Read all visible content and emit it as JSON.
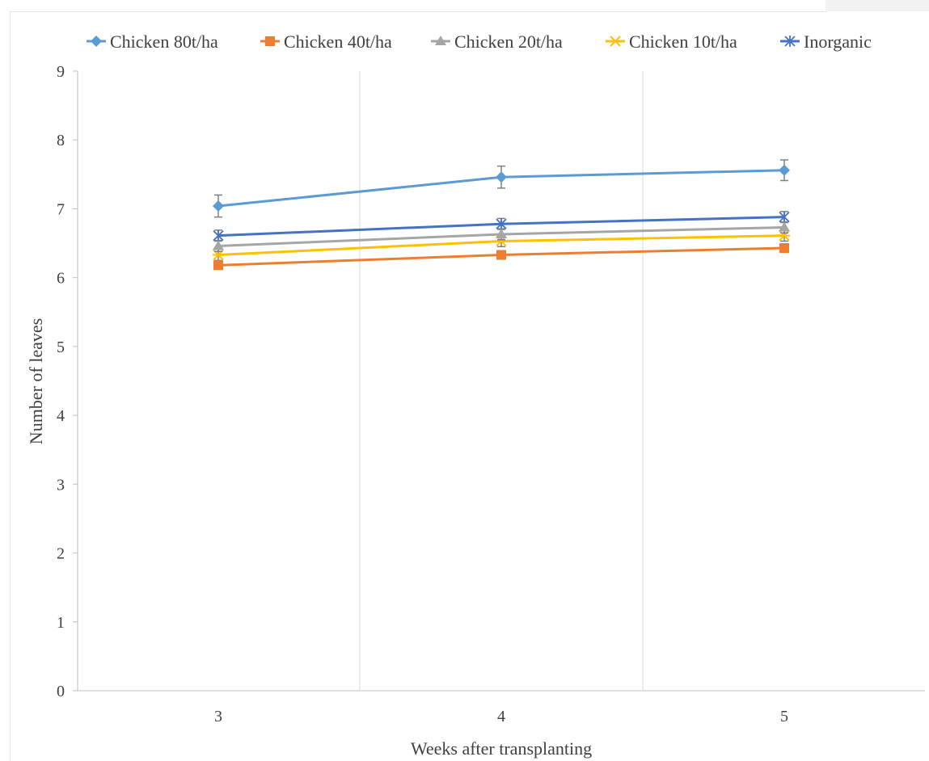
{
  "chart_data": {
    "type": "line",
    "title": "",
    "xlabel": "Weeks after transplanting",
    "ylabel": "Number of leaves",
    "categories": [
      "3",
      "4",
      "5"
    ],
    "ylim": [
      0,
      9
    ],
    "yticks": [
      0,
      1,
      2,
      3,
      4,
      5,
      6,
      7,
      8,
      9
    ],
    "grid": "vertical-between-categories",
    "legend_position": "top",
    "series": [
      {
        "name": "Chicken 80t/ha",
        "values": [
          7.04,
          7.46,
          7.56
        ],
        "errors": [
          0.16,
          0.16,
          0.15
        ],
        "color": "#5B9BD5",
        "marker": "diamond"
      },
      {
        "name": "Chicken 40t/ha",
        "values": [
          6.18,
          6.33,
          6.43
        ],
        "errors": [
          0.0,
          0.0,
          0.0
        ],
        "color": "#ED7D31",
        "marker": "square"
      },
      {
        "name": "Chicken 20t/ha",
        "values": [
          6.46,
          6.63,
          6.73
        ],
        "errors": [
          0.08,
          0.08,
          0.08
        ],
        "color": "#A5A5A5",
        "marker": "triangle"
      },
      {
        "name": "Chicken 10t/ha",
        "values": [
          6.33,
          6.53,
          6.61
        ],
        "errors": [
          0.08,
          0.08,
          0.08
        ],
        "color": "#FFC000",
        "marker": "x"
      },
      {
        "name": "Inorganic",
        "values": [
          6.61,
          6.78,
          6.88
        ],
        "errors": [
          0.08,
          0.08,
          0.08
        ],
        "color": "#4472C4",
        "marker": "asterisk"
      }
    ]
  }
}
